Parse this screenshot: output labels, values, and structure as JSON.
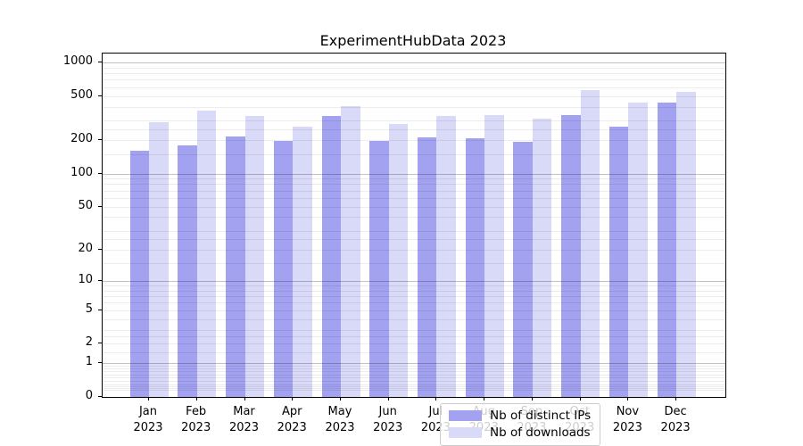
{
  "title": "ExperimentHubData 2023",
  "colors": {
    "ips_bar": "#a2a2f0",
    "downloads_bar": "#d9d9f8",
    "spine": "#000000",
    "grid_minor": "#ececec",
    "grid_major": "#c4c4c4",
    "text": "#000000"
  },
  "legend": {
    "items": [
      {
        "label": "Nb of distinct IPs"
      },
      {
        "label": "Nb of downloads"
      }
    ]
  },
  "chart_data": {
    "type": "bar",
    "title": "ExperimentHubData 2023",
    "categories": [
      "Jan",
      "Feb",
      "Mar",
      "Apr",
      "May",
      "Jun",
      "Jul",
      "Aug",
      "Sep",
      "Oct",
      "Nov",
      "Dec"
    ],
    "year_label": "2023",
    "series": [
      {
        "name": "Nb of distinct IPs",
        "color": "#a2a2f0",
        "values": [
          160,
          180,
          214,
          196,
          330,
          197,
          211,
          208,
          192,
          338,
          266,
          435
        ]
      },
      {
        "name": "Nb of downloads",
        "color": "#d9d9f8",
        "values": [
          291,
          366,
          329,
          266,
          406,
          280,
          329,
          334,
          310,
          565,
          432,
          540
        ]
      }
    ],
    "yscale": "log10(value+1), 0 at baseline",
    "yticks": [
      0,
      1,
      2,
      5,
      10,
      20,
      50,
      100,
      200,
      500,
      1000
    ],
    "ylim": [
      0,
      1200
    ],
    "grid": "horizontal major+minor, drawn above bars",
    "legend_position": "lower center inside plot"
  }
}
